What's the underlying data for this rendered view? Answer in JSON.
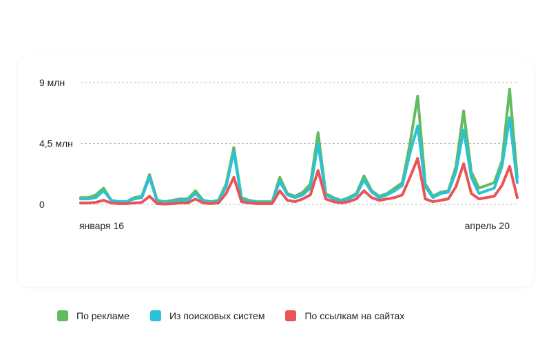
{
  "chart_data": {
    "type": "line",
    "ylim": [
      0,
      9
    ],
    "y_ticks": [
      {
        "value": 0,
        "label": "0"
      },
      {
        "value": 4.5,
        "label": "4,5 млн"
      },
      {
        "value": 9,
        "label": "9 млн"
      }
    ],
    "x_labels": [
      {
        "index": 0,
        "label": "января 16"
      },
      {
        "index": 48,
        "label": "апрель 20"
      }
    ],
    "grid": true,
    "legend_position": "bottom-left",
    "series": [
      {
        "name": "По рекламе",
        "color": "#63bb61",
        "values": [
          0.5,
          0.5,
          0.7,
          1.2,
          0.3,
          0.2,
          0.2,
          0.5,
          0.6,
          2.2,
          0.3,
          0.2,
          0.3,
          0.4,
          0.4,
          1,
          0.3,
          0.2,
          0.3,
          1.5,
          4.2,
          0.5,
          0.3,
          0.2,
          0.2,
          0.2,
          2,
          0.8,
          0.6,
          0.9,
          1.5,
          5.3,
          0.8,
          0.5,
          0.3,
          0.5,
          0.8,
          2.1,
          1,
          0.6,
          0.8,
          1.2,
          1.6,
          4.5,
          8,
          1.5,
          0.6,
          0.9,
          1,
          2.8,
          6.9,
          2.4,
          1.2,
          1.4,
          1.6,
          3.2,
          8.5,
          2
        ]
      },
      {
        "name": "Из поисковых систем",
        "color": "#2bc1d8",
        "values": [
          0.4,
          0.4,
          0.5,
          1,
          0.3,
          0.2,
          0.2,
          0.4,
          0.5,
          2,
          0.2,
          0.15,
          0.2,
          0.3,
          0.3,
          0.8,
          0.25,
          0.15,
          0.25,
          1.3,
          3.9,
          0.4,
          0.25,
          0.15,
          0.15,
          0.15,
          1.7,
          0.7,
          0.5,
          0.7,
          1.2,
          4.5,
          0.7,
          0.4,
          0.25,
          0.4,
          0.7,
          1.8,
          0.9,
          0.5,
          0.7,
          1,
          1.4,
          3.8,
          5.8,
          1.3,
          0.5,
          0.8,
          0.9,
          2.4,
          5.5,
          2,
          0.8,
          1,
          1.2,
          2.8,
          6.4,
          1.6
        ]
      },
      {
        "name": "По ссылкам на сайтах",
        "color": "#ea5455",
        "values": [
          0.1,
          0.1,
          0.15,
          0.3,
          0.1,
          0.05,
          0.05,
          0.1,
          0.15,
          0.6,
          0.05,
          0.02,
          0.05,
          0.1,
          0.1,
          0.4,
          0.1,
          0.05,
          0.1,
          0.8,
          2,
          0.2,
          0.1,
          0.05,
          0.05,
          0.05,
          1,
          0.3,
          0.2,
          0.4,
          0.7,
          2.5,
          0.4,
          0.2,
          0.1,
          0.2,
          0.4,
          1,
          0.5,
          0.3,
          0.4,
          0.5,
          0.7,
          2,
          3.4,
          0.4,
          0.2,
          0.3,
          0.4,
          1.3,
          3,
          0.8,
          0.4,
          0.5,
          0.6,
          1.4,
          2.8,
          0.5
        ]
      }
    ]
  }
}
